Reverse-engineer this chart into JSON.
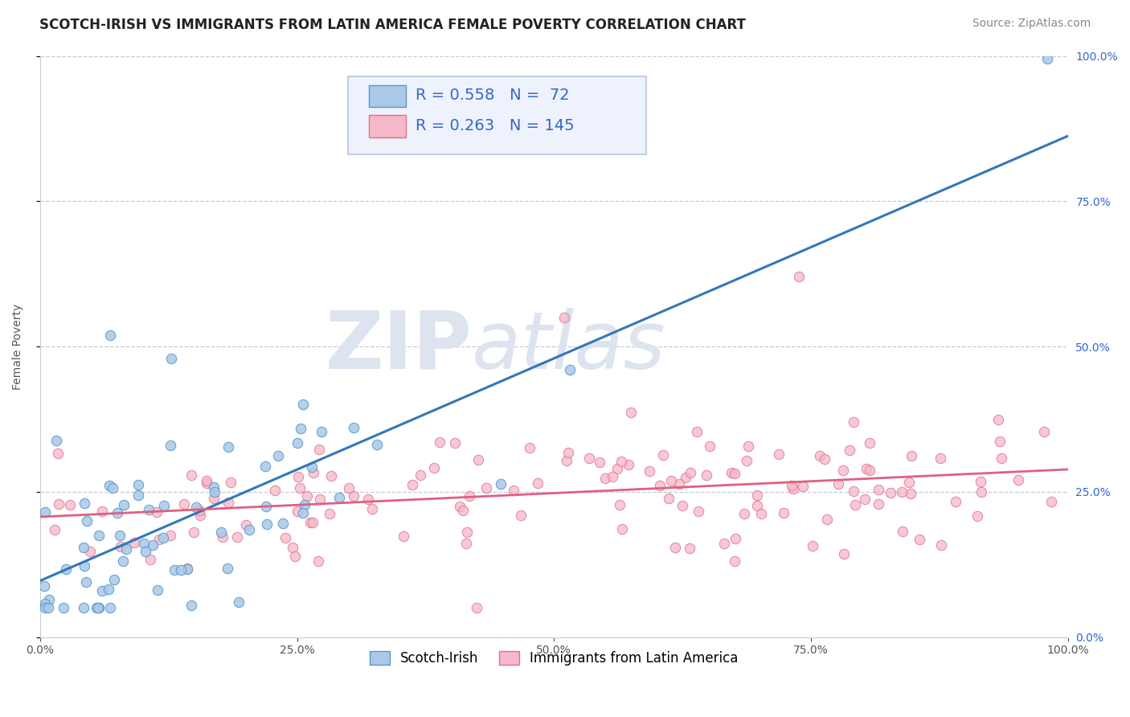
{
  "title": "SCOTCH-IRISH VS IMMIGRANTS FROM LATIN AMERICA FEMALE POVERTY CORRELATION CHART",
  "source": "Source: ZipAtlas.com",
  "ylabel": "Female Poverty",
  "series": [
    {
      "name": "Scotch-Irish",
      "R": 0.558,
      "N": 72,
      "color": "#aac8e8",
      "edge_color": "#5599cc",
      "line_color": "#3377bb"
    },
    {
      "name": "Immigrants from Latin America",
      "R": 0.263,
      "N": 145,
      "color": "#f5b8c8",
      "edge_color": "#e07090",
      "line_color": "#e06080"
    }
  ],
  "xlim": [
    0.0,
    1.0
  ],
  "ylim": [
    0.0,
    1.0
  ],
  "yticks": [
    0.0,
    0.25,
    0.5,
    0.75,
    1.0
  ],
  "ytick_labels": [
    "0.0%",
    "25.0%",
    "50.0%",
    "75.0%",
    "100.0%"
  ],
  "xticks": [
    0.0,
    0.25,
    0.5,
    0.75,
    1.0
  ],
  "xtick_labels": [
    "0.0%",
    "25.0%",
    "50.0%",
    "75.0%",
    "100.0%"
  ],
  "grid_color": "#c8c8d8",
  "bg_color": "#ffffff",
  "watermark_zip": "ZIP",
  "watermark_atlas": "atlas",
  "watermark_color": "#dde4f0",
  "legend_box_color": "#eef2fc",
  "legend_border_color": "#b8c4e0",
  "stat_text_color": "#3366cc",
  "title_fontsize": 12,
  "axis_label_fontsize": 10,
  "tick_fontsize": 10,
  "legend_fontsize": 14,
  "source_fontsize": 10
}
